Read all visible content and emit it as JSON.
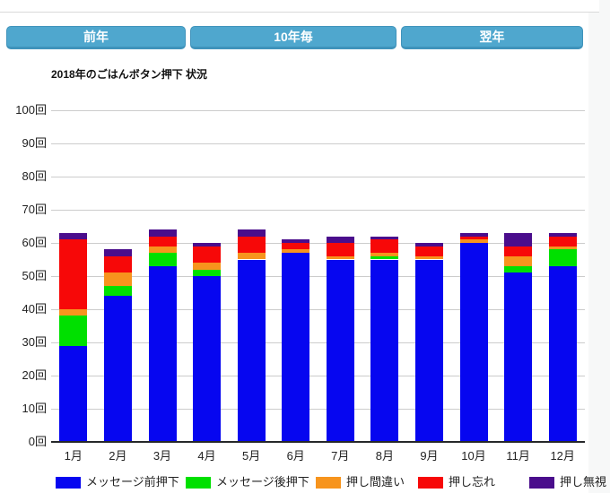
{
  "toolbar": {
    "buttons": [
      {
        "id": "prev-year",
        "label": "前年"
      },
      {
        "id": "decade",
        "label": "10年毎"
      },
      {
        "id": "next-year",
        "label": "翌年"
      }
    ],
    "button_color": "#4fa7ce"
  },
  "chart_data": {
    "type": "bar",
    "stacked": true,
    "title": "2018年のごはんボタン押下 状況",
    "categories": [
      "1月",
      "2月",
      "3月",
      "4月",
      "5月",
      "6月",
      "7月",
      "8月",
      "9月",
      "10月",
      "11月",
      "12月"
    ],
    "series": [
      {
        "name": "メッセージ前押下",
        "color": "#0606f0",
        "values": [
          29,
          44,
          53,
          50,
          55,
          57,
          55,
          55,
          55,
          60,
          51,
          53
        ]
      },
      {
        "name": "メッセージ後押下",
        "color": "#00e000",
        "values": [
          9,
          3,
          4,
          2,
          0,
          0,
          0,
          1,
          0,
          0,
          2,
          5
        ]
      },
      {
        "name": "押し間違い",
        "color": "#f7941d",
        "values": [
          2,
          4,
          2,
          2,
          2,
          1,
          1,
          1,
          1,
          1,
          3,
          1
        ]
      },
      {
        "name": "押し忘れ",
        "color": "#f70808",
        "values": [
          21,
          5,
          3,
          5,
          5,
          2,
          4,
          4,
          3,
          1,
          3,
          3
        ]
      },
      {
        "name": "押し無視",
        "color": "#4a0d8c",
        "values": [
          2,
          2,
          2,
          1,
          2,
          1,
          2,
          1,
          1,
          1,
          4,
          1
        ]
      }
    ],
    "totals": [
      63,
      58,
      64,
      60,
      64,
      61,
      62,
      62,
      60,
      63,
      63,
      63
    ],
    "ylabel_unit": "回",
    "ylim": [
      0,
      100
    ],
    "ytick_step": 10,
    "grid": true,
    "legend_position": "bottom"
  }
}
